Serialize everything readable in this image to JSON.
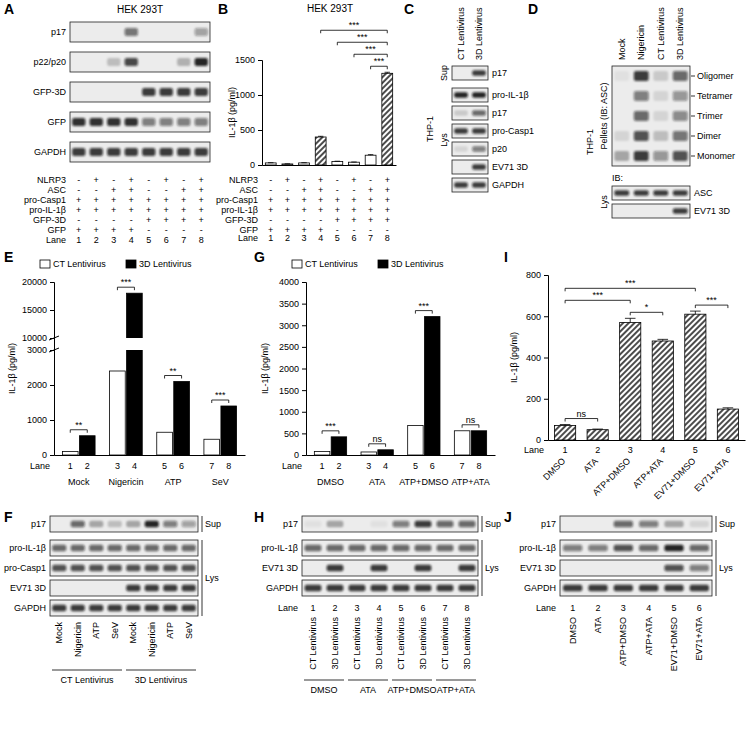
{
  "blots": [
    {
      "label": "A",
      "title": "HEK 293T",
      "sections": [
        {
          "rows": [
            {
              "name": "p17",
              "bands": [
                0,
                0,
                0,
                0.55,
                0,
                0,
                0,
                0.35
              ]
            },
            {
              "name": "p22/p20",
              "bands": [
                0,
                0,
                0.2,
                0.75,
                0,
                0,
                0.25,
                0.9
              ]
            },
            {
              "name": "GFP-3D",
              "bands": [
                0,
                0,
                0,
                0,
                0.8,
                0.8,
                0.8,
                0.8
              ]
            },
            {
              "name": "GFP",
              "bands": [
                0.85,
                0.85,
                0.85,
                0.85,
                0.5,
                0.5,
                0.5,
                0.5
              ]
            },
            {
              "name": "GAPDH",
              "bands": [
                0.8,
                0.8,
                0.8,
                0.8,
                0.8,
                0.8,
                0.8,
                0.8
              ]
            }
          ]
        }
      ],
      "conditions": [
        {
          "name": "NLRP3",
          "values": [
            "-",
            "+",
            "-",
            "+",
            "-",
            "+",
            "-",
            "+"
          ]
        },
        {
          "name": "ASC",
          "values": [
            "-",
            "-",
            "+",
            "+",
            "-",
            "-",
            "+",
            "+"
          ]
        },
        {
          "name": "pro-Casp1",
          "values": [
            "+",
            "+",
            "+",
            "+",
            "+",
            "+",
            "+",
            "+"
          ]
        },
        {
          "name": "pro-IL-1β",
          "values": [
            "+",
            "+",
            "+",
            "+",
            "+",
            "+",
            "+",
            "+"
          ]
        },
        {
          "name": "GFP-3D",
          "values": [
            "-",
            "-",
            "-",
            "-",
            "+",
            "+",
            "+",
            "+"
          ]
        },
        {
          "name": "GFP",
          "values": [
            "+",
            "+",
            "+",
            "+",
            "-",
            "-",
            "-",
            "-"
          ]
        }
      ],
      "lane_label": "Lane",
      "lanes": [
        1,
        2,
        3,
        4,
        5,
        6,
        7,
        8
      ]
    },
    {
      "label": "C",
      "columns": [
        "CT Lentivirus",
        "3D Lentivirus"
      ],
      "side_label": "THP-1",
      "sections": [
        {
          "name": "Sup",
          "rows": [
            {
              "name": "p17",
              "bands": [
                0,
                0.8
              ]
            }
          ]
        },
        {
          "name": "Lys",
          "rows": [
            {
              "name": "pro-IL-1β",
              "bands": [
                0.9,
                0.9
              ]
            },
            {
              "name": "p17",
              "bands": [
                0.15,
                0.6
              ]
            },
            {
              "name": "pro-Casp1",
              "bands": [
                0.8,
                0.8
              ]
            },
            {
              "name": "p20",
              "bands": [
                0.1,
                0.5
              ]
            },
            {
              "name": "EV71 3D",
              "bands": [
                0,
                0.8
              ]
            },
            {
              "name": "GAPDH",
              "bands": [
                0.8,
                0.8
              ]
            }
          ]
        }
      ]
    },
    {
      "label": "D",
      "columns": [
        "Mock",
        "Nigericin",
        "CT Lentivirus",
        "3D Lentivirus"
      ],
      "side_label": "THP-1",
      "sections": [
        {
          "name": "Pellets (IB: ASC)",
          "rows": [
            {
              "name": "Oligomer",
              "bands": [
                0.05,
                0.8,
                0.15,
                0.6
              ]
            },
            {
              "name": "Tetramer",
              "bands": [
                0,
                0.5,
                0.1,
                0.4
              ]
            },
            {
              "name": "Trimer",
              "bands": [
                0,
                0.6,
                0.1,
                0.45
              ]
            },
            {
              "name": "Dimer",
              "bands": [
                0.1,
                0.7,
                0.2,
                0.55
              ]
            },
            {
              "name": "Monomer",
              "bands": [
                0.3,
                0.8,
                0.4,
                0.7
              ]
            }
          ]
        },
        {
          "name": "Lys",
          "note": "IB:",
          "rows": [
            {
              "name": "ASC",
              "bands": [
                0.8,
                0.8,
                0.8,
                0.8
              ]
            },
            {
              "name": "EV71 3D",
              "bands": [
                0,
                0,
                0,
                0.8
              ]
            }
          ]
        }
      ]
    },
    {
      "label": "F",
      "column_groups": [
        {
          "label": "CT Lentivirus",
          "columns": [
            "Mock",
            "Nigericin",
            "ATP",
            "SeV"
          ]
        },
        {
          "label": "3D Lentivirus",
          "columns": [
            "Mock",
            "Nigericin",
            "ATP",
            "SeV"
          ]
        }
      ],
      "sections": [
        {
          "name": "Sup",
          "rows": [
            {
              "name": "p17",
              "bands": [
                0,
                0.6,
                0.3,
                0.2,
                0.3,
                0.9,
                0.5,
                0.35
              ]
            }
          ]
        },
        {
          "name": "Lys",
          "rows": [
            {
              "name": "pro-IL-1β",
              "bands": [
                0.6,
                0.6,
                0.6,
                0.6,
                0.6,
                0.6,
                0.6,
                0.6
              ]
            },
            {
              "name": "pro-Casp1",
              "bands": [
                0.7,
                0.7,
                0.7,
                0.7,
                0.7,
                0.7,
                0.7,
                0.7
              ]
            },
            {
              "name": "EV71 3D",
              "bands": [
                0,
                0,
                0,
                0,
                0.8,
                0.8,
                0.8,
                0.8
              ]
            },
            {
              "name": "GAPDH",
              "bands": [
                0.8,
                0.8,
                0.8,
                0.8,
                0.8,
                0.8,
                0.8,
                0.8
              ]
            }
          ]
        }
      ]
    },
    {
      "label": "H",
      "lane_label": "Lane",
      "lanes": [
        1,
        2,
        3,
        4,
        5,
        6,
        7,
        8
      ],
      "column_groups": [
        {
          "label": "DMSO",
          "columns": [
            "CT Lentivirus",
            "3D Lentivirus"
          ]
        },
        {
          "label": "ATA",
          "columns": [
            "CT Lentivirus",
            "3D Lentivirus"
          ]
        },
        {
          "label": "ATP+DMSO",
          "columns": [
            "CT Lentivirus",
            "3D Lentivirus"
          ]
        },
        {
          "label": "ATP+ATA",
          "columns": [
            "CT Lentivirus",
            "3D Lentivirus"
          ]
        }
      ],
      "sections": [
        {
          "name": "Sup",
          "rows": [
            {
              "name": "p17",
              "bands": [
                0.05,
                0.3,
                0,
                0.05,
                0.5,
                0.8,
                0.6,
                0.6
              ]
            }
          ]
        },
        {
          "name": "Lys",
          "rows": [
            {
              "name": "pro-IL-1β",
              "bands": [
                0.6,
                0.6,
                0.6,
                0.6,
                0.6,
                0.6,
                0.6,
                0.6
              ]
            },
            {
              "name": "EV71 3D",
              "bands": [
                0,
                0.8,
                0,
                0.8,
                0,
                0.8,
                0,
                0.8
              ]
            },
            {
              "name": "GAPDH",
              "bands": [
                0.8,
                0.8,
                0.8,
                0.8,
                0.8,
                0.8,
                0.8,
                0.8
              ]
            }
          ]
        }
      ]
    },
    {
      "label": "J",
      "lane_label": "Lane",
      "lanes": [
        1,
        2,
        3,
        4,
        5,
        6
      ],
      "columns": [
        "DMSO",
        "ATA",
        "ATP+DMSO",
        "ATP+ATA",
        "EV71+DMSO",
        "EV71+ATA"
      ],
      "sections": [
        {
          "name": "Sup",
          "rows": [
            {
              "name": "p17",
              "bands": [
                0,
                0,
                0.6,
                0.5,
                0.3,
                0.1
              ]
            }
          ]
        },
        {
          "name": "Lys",
          "rows": [
            {
              "name": "pro-IL-1β",
              "bands": [
                0.5,
                0.5,
                0.7,
                0.6,
                0.9,
                0.6
              ]
            },
            {
              "name": "EV71 3D",
              "bands": [
                0,
                0,
                0,
                0,
                0.7,
                0.5
              ]
            },
            {
              "name": "GAPDH",
              "bands": [
                0.8,
                0.8,
                0.8,
                0.8,
                0.8,
                0.8
              ]
            }
          ]
        }
      ]
    }
  ],
  "chart_data": [
    {
      "label": "B",
      "type": "bar",
      "title": "HEK 293T",
      "y_label": "IL-1β (pg/ml)",
      "categories": [
        "1",
        "2",
        "3",
        "4",
        "5",
        "6",
        "7",
        "8"
      ],
      "values": [
        30,
        15,
        30,
        400,
        50,
        40,
        140,
        1310
      ],
      "errors": [
        3,
        2,
        3,
        10,
        4,
        3,
        8,
        15
      ],
      "colors": [
        "#ffffff",
        "#ffffff",
        "#ffffff",
        "#000000",
        "#ffffff",
        "#ffffff",
        "#ffffff",
        "#000000"
      ],
      "ylim": [
        0,
        1500
      ],
      "yticks": [
        0,
        500,
        1000,
        1500
      ],
      "lane_label": "Lane",
      "conditions": [
        {
          "name": "NLRP3",
          "values": [
            "-",
            "+",
            "-",
            "+",
            "-",
            "+",
            "-",
            "+"
          ]
        },
        {
          "name": "ASC",
          "values": [
            "-",
            "-",
            "+",
            "+",
            "-",
            "-",
            "+",
            "+"
          ]
        },
        {
          "name": "pro-Casp1",
          "values": [
            "+",
            "+",
            "+",
            "+",
            "+",
            "+",
            "+",
            "+"
          ]
        },
        {
          "name": "pro-IL-1β",
          "values": [
            "+",
            "+",
            "+",
            "+",
            "+",
            "+",
            "+",
            "+"
          ]
        },
        {
          "name": "GFP-3D",
          "values": [
            "-",
            "-",
            "-",
            "-",
            "+",
            "+",
            "+",
            "+"
          ]
        },
        {
          "name": "GFP",
          "values": [
            "+",
            "+",
            "+",
            "+",
            "-",
            "-",
            "-",
            "-"
          ]
        }
      ],
      "significance": [
        {
          "between": [
            "7",
            "8"
          ],
          "label": "***"
        },
        {
          "between": [
            "6",
            "8"
          ],
          "label": "***"
        },
        {
          "between": [
            "5",
            "8"
          ],
          "label": "***"
        },
        {
          "between": [
            "4",
            "8"
          ],
          "label": "***"
        }
      ]
    },
    {
      "label": "E",
      "type": "bar",
      "y_label": "IL-1β (pg/ml)",
      "categories": [
        "Mock",
        "Nigericin",
        "ATP",
        "SeV"
      ],
      "series": [
        {
          "name": "CT Lentivirus",
          "color": "#ffffff",
          "values": [
            100,
            2400,
            650,
            450
          ]
        },
        {
          "name": "3D Lentivirus",
          "color": "#000000",
          "values": [
            550,
            18000,
            2100,
            1400
          ]
        }
      ],
      "ylim": [
        0,
        20000
      ],
      "y_break": [
        3000,
        10000
      ],
      "yticks": [
        0,
        1000,
        2000,
        3000,
        10000,
        15000,
        20000
      ],
      "legend": "top",
      "lane_label": "Lane",
      "lanes": [
        1,
        2,
        3,
        4,
        5,
        6,
        7,
        8
      ],
      "significance": [
        "**",
        "***",
        "**",
        "***"
      ]
    },
    {
      "label": "G",
      "type": "bar",
      "y_label": "IL-1β (pg/ml)",
      "categories": [
        "DMSO",
        "ATA",
        "ATP+DMSO",
        "ATP+ATA"
      ],
      "series": [
        {
          "name": "CT Lentivirus",
          "color": "#ffffff",
          "values": [
            80,
            70,
            680,
            560
          ]
        },
        {
          "name": "3D Lentivirus",
          "color": "#000000",
          "values": [
            420,
            120,
            3200,
            560
          ]
        }
      ],
      "ylim": [
        0,
        4000
      ],
      "yticks": [
        0,
        500,
        1000,
        1500,
        2000,
        2500,
        3000,
        3500,
        4000
      ],
      "legend": "top",
      "lane_label": "Lane",
      "lanes": [
        1,
        2,
        3,
        4,
        5,
        6,
        7,
        8
      ],
      "significance": [
        "***",
        "ns",
        "***",
        "ns"
      ]
    },
    {
      "label": "I",
      "type": "bar",
      "y_label": "IL-1β (pg/ml)",
      "categories": [
        "DMSO",
        "ATA",
        "ATP+DMSO",
        "ATP+ATA",
        "EV71+DMSO",
        "EV71+ATA"
      ],
      "values": [
        70,
        50,
        570,
        480,
        610,
        150
      ],
      "errors": [
        5,
        3,
        20,
        8,
        15,
        6
      ],
      "colors": [
        "#000000",
        "#000000",
        "#000000",
        "#000000",
        "#000000",
        "#000000"
      ],
      "ylim": [
        0,
        800
      ],
      "yticks": [
        0,
        200,
        400,
        600,
        800
      ],
      "lane_label": "Lane",
      "lanes": [
        1,
        2,
        3,
        4,
        5,
        6
      ],
      "significance": [
        {
          "between": [
            "DMSO",
            "ATA"
          ],
          "label": "ns"
        },
        {
          "between": [
            "ATP+DMSO",
            "ATP+ATA"
          ],
          "label": "*"
        },
        {
          "between": [
            "EV71+DMSO",
            "EV71+ATA"
          ],
          "label": "***"
        },
        {
          "between": [
            "DMSO",
            "ATP+DMSO"
          ],
          "label": "***"
        },
        {
          "between": [
            "DMSO",
            "EV71+DMSO"
          ],
          "label": "***"
        }
      ]
    }
  ]
}
